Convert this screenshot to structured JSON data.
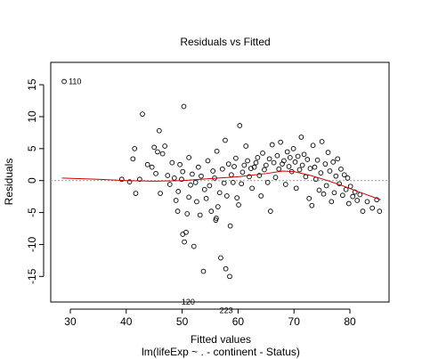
{
  "chart_data": {
    "type": "scatter",
    "title": "Residuals vs Fitted",
    "xlabel": "Fitted values",
    "subtitle": "lm(lifeExp ~ . - continent - Status)",
    "ylabel": "Residuals",
    "xlim": [
      26.5,
      87
    ],
    "ylim": [
      -19,
      18.5
    ],
    "xticks": [
      30,
      40,
      50,
      60,
      70,
      80
    ],
    "yticks": [
      -15,
      -10,
      -5,
      0,
      5,
      10,
      15
    ],
    "grid": false,
    "legend": "none",
    "colors": {
      "points": "#000000",
      "smooth": "#cc0000",
      "zero_line": "#999999",
      "frame": "#000000"
    },
    "points": [
      [
        28.9,
        15.5
      ],
      [
        39.2,
        0.2
      ],
      [
        40.6,
        -0.2
      ],
      [
        41.2,
        3.4
      ],
      [
        41.5,
        5.0
      ],
      [
        41.7,
        -2.0
      ],
      [
        42.4,
        0.2
      ],
      [
        42.9,
        10.4
      ],
      [
        43.8,
        2.5
      ],
      [
        44.6,
        2.1
      ],
      [
        45.0,
        5.2
      ],
      [
        45.3,
        1.1
      ],
      [
        45.6,
        4.5
      ],
      [
        45.9,
        7.8
      ],
      [
        46.1,
        -2.0
      ],
      [
        46.5,
        4.2
      ],
      [
        46.9,
        5.4
      ],
      [
        47.4,
        0.8
      ],
      [
        47.8,
        -0.6
      ],
      [
        48.2,
        2.8
      ],
      [
        48.6,
        0.4
      ],
      [
        48.9,
        -3.1
      ],
      [
        49.2,
        -4.8
      ],
      [
        49.3,
        -1.7
      ],
      [
        49.6,
        2.5
      ],
      [
        49.9,
        0.2
      ],
      [
        50.1,
        1.4
      ],
      [
        50.1,
        -8.4
      ],
      [
        50.3,
        11.6
      ],
      [
        50.4,
        -9.6
      ],
      [
        50.7,
        -8.1
      ],
      [
        50.9,
        -5.2
      ],
      [
        51.2,
        3.6
      ],
      [
        51.5,
        -0.7
      ],
      [
        51.8,
        1.0
      ],
      [
        51.2,
        -2.6
      ],
      [
        52.1,
        -10.3
      ],
      [
        52.4,
        -0.3
      ],
      [
        52.6,
        -3.3
      ],
      [
        52.9,
        2.1
      ],
      [
        53.2,
        -5.4
      ],
      [
        53.4,
        0.7
      ],
      [
        53.8,
        -14.2
      ],
      [
        54.0,
        -1.4
      ],
      [
        54.3,
        -2.8
      ],
      [
        54.6,
        3.1
      ],
      [
        54.9,
        -0.8
      ],
      [
        55.2,
        -4.8
      ],
      [
        55.5,
        1.5
      ],
      [
        55.8,
        0.4
      ],
      [
        56.0,
        -6.2
      ],
      [
        56.1,
        -5.9
      ],
      [
        56.2,
        4.6
      ],
      [
        56.4,
        -4.1
      ],
      [
        56.7,
        -1.9
      ],
      [
        56.9,
        -12.1
      ],
      [
        57.2,
        1.8
      ],
      [
        57.5,
        -0.4
      ],
      [
        57.7,
        6.3
      ],
      [
        57.8,
        -13.8
      ],
      [
        58.0,
        -2.4
      ],
      [
        58.3,
        2.6
      ],
      [
        58.5,
        -15.0
      ],
      [
        58.6,
        -7.1
      ],
      [
        58.8,
        0.9
      ],
      [
        59.1,
        -0.3
      ],
      [
        59.3,
        2.2
      ],
      [
        59.6,
        3.5
      ],
      [
        59.8,
        -2.7
      ],
      [
        60.1,
        -3.8
      ],
      [
        60.3,
        8.6
      ],
      [
        60.6,
        -0.5
      ],
      [
        60.8,
        1.3
      ],
      [
        61.1,
        2.4
      ],
      [
        61.4,
        5.4
      ],
      [
        61.7,
        3.1
      ],
      [
        62.0,
        0.6
      ],
      [
        62.3,
        1.9
      ],
      [
        62.5,
        -1.2
      ],
      [
        62.9,
        2.1
      ],
      [
        63.2,
        2.8
      ],
      [
        63.5,
        3.6
      ],
      [
        63.8,
        0.8
      ],
      [
        64.1,
        -2.4
      ],
      [
        64.4,
        4.3
      ],
      [
        64.7,
        1.7
      ],
      [
        65.0,
        2.4
      ],
      [
        65.3,
        -0.3
      ],
      [
        65.6,
        3.4
      ],
      [
        65.8,
        -4.8
      ],
      [
        66.1,
        5.6
      ],
      [
        66.4,
        2.8
      ],
      [
        66.7,
        0.5
      ],
      [
        67.0,
        3.9
      ],
      [
        67.3,
        1.8
      ],
      [
        67.6,
        6.0
      ],
      [
        67.9,
        2.6
      ],
      [
        68.2,
        3.1
      ],
      [
        68.5,
        -0.6
      ],
      [
        68.8,
        4.5
      ],
      [
        69.1,
        2.2
      ],
      [
        69.3,
        3.6
      ],
      [
        69.6,
        1.4
      ],
      [
        69.9,
        5.0
      ],
      [
        70.2,
        2.9
      ],
      [
        70.4,
        -1.2
      ],
      [
        70.7,
        3.8
      ],
      [
        71.0,
        1.7
      ],
      [
        71.3,
        6.8
      ],
      [
        71.5,
        2.4
      ],
      [
        71.8,
        4.1
      ],
      [
        72.1,
        0.6
      ],
      [
        72.4,
        3.3
      ],
      [
        72.7,
        -2.8
      ],
      [
        72.9,
        1.9
      ],
      [
        73.2,
        -3.9
      ],
      [
        73.4,
        5.5
      ],
      [
        73.7,
        2.1
      ],
      [
        73.9,
        0.2
      ],
      [
        74.2,
        3.2
      ],
      [
        74.5,
        -1.5
      ],
      [
        74.8,
        1.2
      ],
      [
        75.0,
        6.1
      ],
      [
        75.3,
        -2.1
      ],
      [
        75.6,
        2.6
      ],
      [
        75.8,
        -0.8
      ],
      [
        76.1,
        4.4
      ],
      [
        76.4,
        1.5
      ],
      [
        76.7,
        -3.3
      ],
      [
        77.0,
        2.9
      ],
      [
        77.2,
        -1.9
      ],
      [
        77.5,
        0.7
      ],
      [
        77.8,
        3.4
      ],
      [
        78.1,
        -0.5
      ],
      [
        78.4,
        1.8
      ],
      [
        78.7,
        -2.3
      ],
      [
        79.0,
        0.9
      ],
      [
        79.3,
        -1.4
      ],
      [
        79.6,
        0.4
      ],
      [
        79.8,
        -3.6
      ],
      [
        80.1,
        -0.9
      ],
      [
        80.5,
        -2.5
      ],
      [
        80.9,
        -1.8
      ],
      [
        81.3,
        -3.1
      ],
      [
        81.8,
        -2.2
      ],
      [
        82.3,
        -4.8
      ],
      [
        83.1,
        -3.3
      ],
      [
        84.0,
        -4.3
      ],
      [
        84.8,
        -3.0
      ],
      [
        85.3,
        -4.8
      ]
    ],
    "labeled_points": [
      {
        "label": "110",
        "x": 28.9,
        "y": 15.5
      },
      {
        "label": "120",
        "x": 50.2,
        "y": -19.0
      },
      {
        "label": "223",
        "x": 57.0,
        "y": -20.3
      }
    ],
    "smooth": [
      [
        28.5,
        0.4
      ],
      [
        35,
        0.2
      ],
      [
        40,
        0.0
      ],
      [
        45,
        -0.1
      ],
      [
        50,
        0.0
      ],
      [
        55,
        0.3
      ],
      [
        60,
        0.6
      ],
      [
        65,
        1.1
      ],
      [
        68,
        1.5
      ],
      [
        70,
        1.4
      ],
      [
        73,
        0.8
      ],
      [
        76,
        0.0
      ],
      [
        79,
        -0.9
      ],
      [
        82,
        -1.9
      ],
      [
        85.5,
        -3.0
      ]
    ]
  }
}
